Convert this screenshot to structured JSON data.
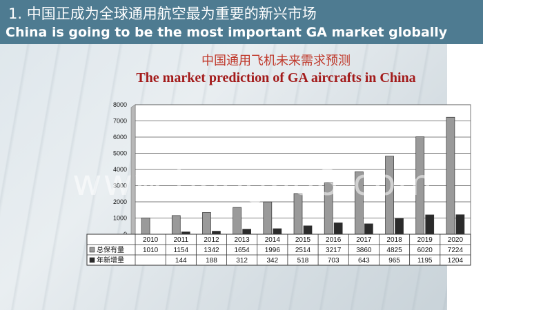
{
  "header": {
    "title_cn": "1. 中国正成为全球通用航空最为重要的新兴市场",
    "title_en": "China is going to be the most important GA market globally"
  },
  "chart_data": {
    "type": "bar",
    "title": "中国通用飞机未来需求预测",
    "subtitle": "The market prediction of GA aircrafts in China",
    "categories": [
      "2010",
      "2011",
      "2012",
      "2013",
      "2014",
      "2015",
      "2016",
      "2017",
      "2018",
      "2019",
      "2020"
    ],
    "series": [
      {
        "name": "总保有量",
        "color": "#9a9a9a",
        "values": [
          1010,
          1154,
          1342,
          1654,
          1996,
          2514,
          3217,
          3860,
          4825,
          6020,
          7224
        ],
        "labels": [
          "1010",
          "1154",
          "1342",
          "1654",
          "1996",
          "2514",
          "3217",
          "3860",
          "4825",
          "6020",
          "7224"
        ]
      },
      {
        "name": "年新增量",
        "color": "#2b2b2b",
        "values": [
          null,
          144,
          188,
          312,
          342,
          518,
          703,
          643,
          965,
          1195,
          1204
        ],
        "labels": [
          "",
          "144",
          "188",
          "312",
          "342",
          "518",
          "703",
          "643",
          "965",
          "1195",
          "1204"
        ]
      }
    ],
    "yticks": [
      "0",
      "1000",
      "2000",
      "3000",
      "4000",
      "5000",
      "6000",
      "7000",
      "8000"
    ],
    "ylim": [
      0,
      8000
    ],
    "grid": true,
    "legend": "data-table-left"
  },
  "watermark": "www.baogao8.com"
}
